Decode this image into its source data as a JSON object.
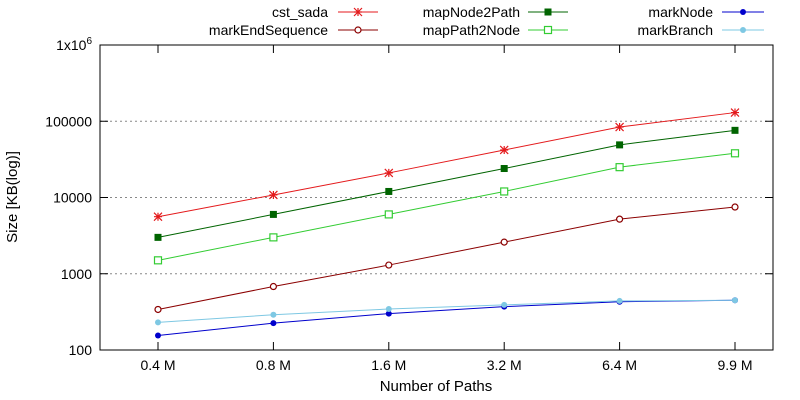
{
  "chart_data": {
    "type": "line",
    "title": "",
    "xlabel": "Number of Paths",
    "ylabel": "Size [KB(log)]",
    "categories": [
      "0.4 M",
      "0.8 M",
      "1.6 M",
      "3.2 M",
      "6.4 M",
      "9.9 M"
    ],
    "y_scale": "log",
    "ylim": [
      100,
      1000000
    ],
    "y_ticks": [
      {
        "value": 100,
        "label": "100"
      },
      {
        "value": 1000,
        "label": "1000"
      },
      {
        "value": 10000,
        "label": "10000"
      },
      {
        "value": 100000,
        "label": "100000"
      },
      {
        "value": 1000000,
        "label": "1x10",
        "exponent": "6"
      }
    ],
    "grid": "horizontal dotted",
    "legend_position": "top",
    "series": [
      {
        "name": "cst_sada",
        "color": "#e41a1c",
        "marker": "star",
        "values": [
          5600,
          10800,
          21000,
          42000,
          84000,
          130000
        ]
      },
      {
        "name": "markEndSequence",
        "color": "#8b0000",
        "marker": "open-circle",
        "values": [
          340,
          680,
          1300,
          2600,
          5200,
          7500
        ]
      },
      {
        "name": "mapNode2Path",
        "color": "#006400",
        "marker": "filled-square",
        "values": [
          3000,
          6000,
          12000,
          24000,
          49000,
          76000
        ]
      },
      {
        "name": "mapPath2Node",
        "color": "#33cc33",
        "marker": "open-square",
        "values": [
          1500,
          3000,
          6000,
          12000,
          25000,
          38000
        ]
      },
      {
        "name": "markNode",
        "color": "#0000cc",
        "marker": "filled-circle",
        "values": [
          155,
          225,
          300,
          370,
          430,
          450
        ]
      },
      {
        "name": "markBranch",
        "color": "#7ec8e3",
        "marker": "filled-circle",
        "values": [
          230,
          290,
          345,
          390,
          440,
          450
        ]
      }
    ]
  }
}
